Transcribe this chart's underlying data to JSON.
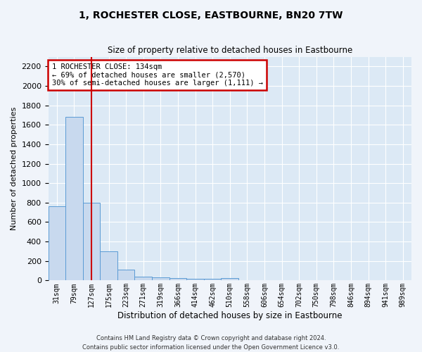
{
  "title": "1, ROCHESTER CLOSE, EASTBOURNE, BN20 7TW",
  "subtitle": "Size of property relative to detached houses in Eastbourne",
  "xlabel": "Distribution of detached houses by size in Eastbourne",
  "ylabel": "Number of detached properties",
  "bar_color": "#c8d9ee",
  "bar_edge_color": "#5b9bd5",
  "background_color": "#dce9f5",
  "grid_color": "#ffffff",
  "fig_background": "#f0f4fa",
  "categories": [
    "31sqm",
    "79sqm",
    "127sqm",
    "175sqm",
    "223sqm",
    "271sqm",
    "319sqm",
    "366sqm",
    "414sqm",
    "462sqm",
    "510sqm",
    "558sqm",
    "606sqm",
    "654sqm",
    "702sqm",
    "750sqm",
    "798sqm",
    "846sqm",
    "894sqm",
    "941sqm",
    "989sqm"
  ],
  "values": [
    760,
    1680,
    800,
    300,
    110,
    40,
    30,
    25,
    20,
    20,
    25,
    0,
    0,
    0,
    0,
    0,
    0,
    0,
    0,
    0,
    0
  ],
  "property_line_index": 2,
  "property_line_color": "#cc0000",
  "ylim": [
    0,
    2300
  ],
  "yticks": [
    0,
    200,
    400,
    600,
    800,
    1000,
    1200,
    1400,
    1600,
    1800,
    2000,
    2200
  ],
  "annotation_text": "1 ROCHESTER CLOSE: 134sqm\n← 69% of detached houses are smaller (2,570)\n30% of semi-detached houses are larger (1,111) →",
  "annotation_box_color": "#ffffff",
  "annotation_box_edge_color": "#cc0000",
  "footer_line1": "Contains HM Land Registry data © Crown copyright and database right 2024.",
  "footer_line2": "Contains public sector information licensed under the Open Government Licence v3.0."
}
